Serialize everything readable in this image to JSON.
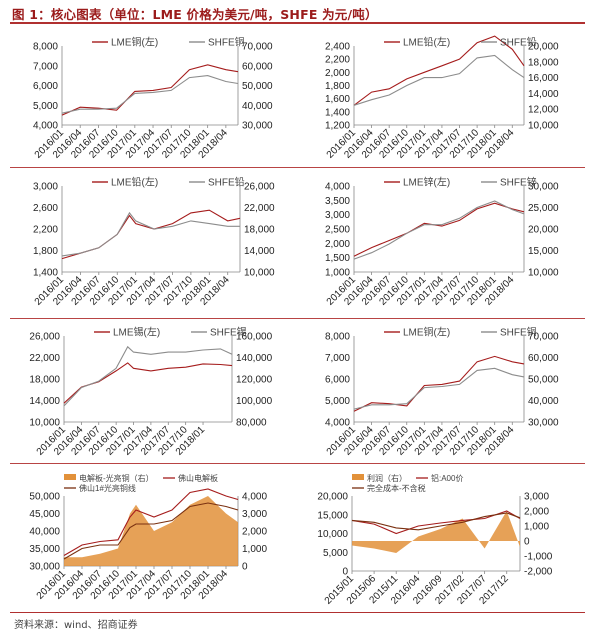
{
  "figure": {
    "title": "图 1：核心图表（单位：LME 价格为美元/吨，SHFE 为元/吨）",
    "source": "资料来源：wind、招商证券"
  },
  "colors": {
    "red": "#a51c1c",
    "gray": "#8c8c8c",
    "orange": "#e2913a",
    "brown": "#7a3010",
    "pink": "#e0a090"
  },
  "chart_data": [
    {
      "id": "copper1",
      "type": "line",
      "series": [
        {
          "name": "LME铜(左)",
          "axis": "left",
          "color": "red",
          "x": [
            "2016/01",
            "2016/04",
            "2016/07",
            "2016/10",
            "2017/01",
            "2017/04",
            "2017/07",
            "2017/10",
            "2018/01",
            "2018/04",
            "2018/06"
          ],
          "values": [
            4500,
            4900,
            4850,
            4750,
            5700,
            5750,
            5900,
            6800,
            7050,
            6800,
            6700
          ]
        },
        {
          "name": "SHFE铜",
          "axis": "right",
          "color": "gray",
          "x": [
            "2016/01",
            "2016/04",
            "2016/07",
            "2016/10",
            "2017/01",
            "2017/04",
            "2017/07",
            "2017/10",
            "2018/01",
            "2018/04",
            "2018/06"
          ],
          "values": [
            36000,
            38000,
            38000,
            38500,
            46000,
            46500,
            47500,
            54000,
            55000,
            52000,
            51000
          ]
        }
      ],
      "x_ticks": [
        "2016/01",
        "2016/04",
        "2016/07",
        "2016/10",
        "2017/01",
        "2017/04",
        "2017/07",
        "2017/10",
        "2018/01",
        "2018/04"
      ],
      "y_left": {
        "min": 4000,
        "max": 8000,
        "ticks": [
          "4,000",
          "5,000",
          "6,000",
          "7,000",
          "8,000"
        ]
      },
      "y_right": {
        "min": 30000,
        "max": 70000,
        "ticks": [
          "30,000",
          "40,000",
          "50,000",
          "60,000",
          "70,000"
        ]
      },
      "x_range": [
        "2016/01",
        "2018/06"
      ]
    },
    {
      "id": "lead1",
      "type": "line",
      "series": [
        {
          "name": "LME铅(左)",
          "axis": "left",
          "color": "red",
          "x": [
            "2016/01",
            "2016/04",
            "2016/07",
            "2016/10",
            "2017/01",
            "2017/04",
            "2017/07",
            "2017/10",
            "2018/01",
            "2018/04",
            "2018/06"
          ],
          "values": [
            1500,
            1700,
            1750,
            1900,
            2000,
            2100,
            2200,
            2450,
            2550,
            2350,
            2100
          ]
        },
        {
          "name": "SHFE铅",
          "axis": "right",
          "color": "gray",
          "x": [
            "2016/01",
            "2016/04",
            "2016/07",
            "2016/10",
            "2017/01",
            "2017/04",
            "2017/07",
            "2017/10",
            "2018/01",
            "2018/04",
            "2018/06"
          ],
          "values": [
            12500,
            13200,
            13800,
            15000,
            16000,
            16000,
            16500,
            18500,
            18800,
            17000,
            16000
          ]
        }
      ],
      "x_ticks": [
        "2016/01",
        "2016/04",
        "2016/07",
        "2016/10",
        "2017/01",
        "2017/04",
        "2017/07",
        "2017/10",
        "2018/01",
        "2018/04"
      ],
      "y_left": {
        "min": 1200,
        "max": 2400,
        "ticks": [
          "1,200",
          "1,400",
          "1,600",
          "1,800",
          "2,000",
          "2,200",
          "2,400"
        ]
      },
      "y_right": {
        "min": 10000,
        "max": 20000,
        "ticks": [
          "10,000",
          "12,000",
          "14,000",
          "16,000",
          "18,000",
          "20,000"
        ]
      },
      "x_range": [
        "2016/01",
        "2018/06"
      ]
    },
    {
      "id": "lead2",
      "type": "line",
      "series": [
        {
          "name": "LME铅(左)",
          "axis": "left",
          "color": "red",
          "x": [
            "2016/01",
            "2016/04",
            "2016/07",
            "2016/10",
            "2016/12",
            "2017/01",
            "2017/04",
            "2017/07",
            "2017/10",
            "2018/01",
            "2018/04",
            "2018/06"
          ],
          "values": [
            1650,
            1750,
            1850,
            2100,
            2450,
            2300,
            2200,
            2300,
            2500,
            2550,
            2350,
            2400
          ]
        },
        {
          "name": "SHFE铅",
          "axis": "right",
          "color": "gray",
          "x": [
            "2016/01",
            "2016/04",
            "2016/07",
            "2016/10",
            "2016/12",
            "2017/01",
            "2017/04",
            "2017/07",
            "2017/10",
            "2018/01",
            "2018/04",
            "2018/06"
          ],
          "values": [
            13000,
            13500,
            14500,
            17000,
            21000,
            19500,
            18000,
            18500,
            19500,
            19000,
            18500,
            18500
          ]
        }
      ],
      "x_ticks": [
        "2016/01",
        "2016/04",
        "2016/07",
        "2016/10",
        "2017/01",
        "2017/04",
        "2017/07",
        "2017/10",
        "2018/01",
        "2018/04"
      ],
      "y_left": {
        "min": 1400,
        "max": 3000,
        "ticks": [
          "1,400",
          "1,800",
          "2,200",
          "2,600",
          "3,000"
        ]
      },
      "y_right": {
        "min": 10000,
        "max": 26000,
        "ticks": [
          "10,000",
          "14,000",
          "18,000",
          "22,000",
          "26,000"
        ]
      },
      "x_range": [
        "2016/01",
        "2018/06"
      ]
    },
    {
      "id": "zinc",
      "type": "line",
      "series": [
        {
          "name": "LME锌(左)",
          "axis": "left",
          "color": "red",
          "x": [
            "2016/01",
            "2016/04",
            "2016/07",
            "2016/10",
            "2017/01",
            "2017/04",
            "2017/07",
            "2017/10",
            "2018/01",
            "2018/04",
            "2018/06"
          ],
          "values": [
            1550,
            1850,
            2100,
            2350,
            2700,
            2600,
            2800,
            3200,
            3400,
            3200,
            3100
          ]
        },
        {
          "name": "SHFE锌",
          "axis": "right",
          "color": "gray",
          "x": [
            "2016/01",
            "2016/04",
            "2016/07",
            "2016/10",
            "2017/01",
            "2017/04",
            "2017/07",
            "2017/10",
            "2018/01",
            "2018/04",
            "2018/06"
          ],
          "values": [
            13000,
            14500,
            16500,
            19000,
            21000,
            21000,
            22500,
            25000,
            26500,
            24500,
            23500
          ]
        }
      ],
      "x_ticks": [
        "2016/01",
        "2016/04",
        "2016/07",
        "2016/10",
        "2017/01",
        "2017/04",
        "2017/07",
        "2017/10",
        "2018/01",
        "2018/04"
      ],
      "y_left": {
        "min": 1000,
        "max": 4000,
        "ticks": [
          "1,000",
          "1,500",
          "2,000",
          "2,500",
          "3,000",
          "3,500",
          "4,000"
        ]
      },
      "y_right": {
        "min": 10000,
        "max": 30000,
        "ticks": [
          "10,000",
          "15,000",
          "20,000",
          "25,000",
          "30,000"
        ]
      },
      "x_range": [
        "2016/01",
        "2018/06"
      ]
    },
    {
      "id": "tin",
      "type": "line",
      "series": [
        {
          "name": "LME锡(左)",
          "axis": "left",
          "color": "red",
          "x": [
            "2016/01",
            "2016/04",
            "2016/07",
            "2016/10",
            "2016/12",
            "2017/01",
            "2017/04",
            "2017/07",
            "2017/10",
            "2018/01",
            "2018/04",
            "2018/06"
          ],
          "values": [
            13500,
            16500,
            17500,
            19500,
            21000,
            20000,
            19500,
            20000,
            20200,
            20800,
            20700,
            20500
          ]
        },
        {
          "name": "SHFE锡",
          "axis": "right",
          "color": "gray",
          "x": [
            "2016/01",
            "2016/04",
            "2016/07",
            "2016/10",
            "2016/12",
            "2017/01",
            "2017/04",
            "2017/07",
            "2017/10",
            "2018/01",
            "2018/04",
            "2018/06"
          ],
          "values": [
            95000,
            112000,
            118000,
            130000,
            150000,
            145000,
            143000,
            145000,
            145000,
            147000,
            148000,
            143000
          ]
        }
      ],
      "x_ticks": [
        "2016/01",
        "2016/04",
        "2016/07",
        "2016/10",
        "2017/01",
        "2017/04",
        "2017/07",
        "2017/10",
        "2018/01"
      ],
      "y_left": {
        "min": 10000,
        "max": 26000,
        "ticks": [
          "10,000",
          "14,000",
          "18,000",
          "22,000",
          "26,000"
        ]
      },
      "y_right": {
        "min": 80000,
        "max": 160000,
        "ticks": [
          "80,000",
          "100,000",
          "120,000",
          "140,000",
          "160,000"
        ]
      },
      "x_range": [
        "2016/01",
        "2018/06"
      ]
    },
    {
      "id": "copper2",
      "type": "line",
      "series": [
        {
          "name": "LME铜(左)",
          "axis": "left",
          "color": "red",
          "x": [
            "2016/01",
            "2016/04",
            "2016/07",
            "2016/10",
            "2017/01",
            "2017/04",
            "2017/07",
            "2017/10",
            "2018/01",
            "2018/04",
            "2018/06"
          ],
          "values": [
            4500,
            4900,
            4850,
            4750,
            5700,
            5750,
            5900,
            6800,
            7050,
            6800,
            6700
          ]
        },
        {
          "name": "SHFE铜",
          "axis": "right",
          "color": "gray",
          "x": [
            "2016/01",
            "2016/04",
            "2016/07",
            "2016/10",
            "2017/01",
            "2017/04",
            "2017/07",
            "2017/10",
            "2018/01",
            "2018/04",
            "2018/06"
          ],
          "values": [
            36000,
            38000,
            38000,
            38500,
            46000,
            46500,
            47500,
            54000,
            55000,
            52000,
            51000
          ]
        }
      ],
      "x_ticks": [
        "2016/01",
        "2016/04",
        "2016/07",
        "2016/10",
        "2017/01",
        "2017/04",
        "2017/07",
        "2017/10",
        "2018/01",
        "2018/04"
      ],
      "y_left": {
        "min": 4000,
        "max": 8000,
        "ticks": [
          "4,000",
          "5,000",
          "6,000",
          "7,000",
          "8,000"
        ]
      },
      "y_right": {
        "min": 30000,
        "max": 70000,
        "ticks": [
          "30,000",
          "40,000",
          "50,000",
          "60,000",
          "70,000"
        ]
      },
      "x_range": [
        "2016/01",
        "2018/06"
      ]
    },
    {
      "id": "copper-spread",
      "type": "line",
      "series": [
        {
          "name": "电解板-光亮铜（右）",
          "axis": "right",
          "color": "orange",
          "style": "area",
          "x": [
            "2016/01",
            "2016/04",
            "2016/07",
            "2016/10",
            "2016/12",
            "2017/01",
            "2017/04",
            "2017/07",
            "2017/10",
            "2018/01",
            "2018/04",
            "2018/06"
          ],
          "values": [
            500,
            500,
            700,
            1000,
            3000,
            3500,
            2000,
            2500,
            3500,
            4000,
            3000,
            2500
          ]
        },
        {
          "name": "佛山电解板",
          "axis": "left",
          "color": "red",
          "x": [
            "2016/01",
            "2016/04",
            "2016/07",
            "2016/10",
            "2016/12",
            "2017/01",
            "2017/04",
            "2017/07",
            "2017/10",
            "2018/01",
            "2018/04",
            "2018/06"
          ],
          "values": [
            33000,
            36000,
            37000,
            37500,
            44000,
            46000,
            44000,
            46000,
            51000,
            52000,
            50000,
            49000
          ]
        },
        {
          "name": "佛山1#光亮铜线",
          "axis": "left",
          "color": "brown",
          "x": [
            "2016/01",
            "2016/04",
            "2016/07",
            "2016/10",
            "2016/12",
            "2017/01",
            "2017/04",
            "2017/07",
            "2017/10",
            "2018/01",
            "2018/04",
            "2018/06"
          ],
          "values": [
            32000,
            35000,
            36000,
            36000,
            41000,
            42000,
            42000,
            43000,
            47000,
            48000,
            47000,
            46000
          ]
        }
      ],
      "x_ticks": [
        "2016/01",
        "2016/04",
        "2016/07",
        "2016/10",
        "2017/01",
        "2017/04",
        "2017/07",
        "2017/10",
        "2018/01",
        "2018/04"
      ],
      "y_left": {
        "min": 30000,
        "max": 50000,
        "ticks": [
          "30,000",
          "35,000",
          "40,000",
          "45,000",
          "50,000"
        ]
      },
      "y_right": {
        "min": 0,
        "max": 4000,
        "ticks": [
          "0",
          "1,000",
          "2,000",
          "3,000",
          "4,000"
        ]
      },
      "x_range": [
        "2016/01",
        "2018/06"
      ]
    },
    {
      "id": "aluminum-profit",
      "type": "line",
      "series": [
        {
          "name": "利润（右）",
          "axis": "right",
          "color": "orange",
          "style": "area",
          "x": [
            "2015/01",
            "2015/06",
            "2015/11",
            "2016/04",
            "2016/09",
            "2017/02",
            "2017/07",
            "2017/12",
            "2018/03"
          ],
          "values": [
            -300,
            -500,
            -800,
            300,
            800,
            1500,
            -500,
            2000,
            -400
          ]
        },
        {
          "name": "铝:A00价",
          "axis": "left",
          "color": "red",
          "x": [
            "2015/01",
            "2015/06",
            "2015/11",
            "2016/04",
            "2016/09",
            "2017/02",
            "2017/07",
            "2017/12",
            "2018/03"
          ],
          "values": [
            13500,
            12500,
            10000,
            12000,
            12800,
            13500,
            14000,
            16000,
            14000
          ]
        },
        {
          "name": "完全成本-不含税",
          "axis": "left",
          "color": "brown",
          "x": [
            "2015/01",
            "2015/06",
            "2015/11",
            "2016/04",
            "2016/09",
            "2017/02",
            "2017/07",
            "2017/12",
            "2018/03"
          ],
          "values": [
            13500,
            13000,
            11500,
            11000,
            12000,
            13000,
            14500,
            15500,
            14200
          ]
        }
      ],
      "x_ticks": [
        "2015/01",
        "2015/06",
        "2015/11",
        "2016/04",
        "2016/09",
        "2017/02",
        "2017/07",
        "2017/12"
      ],
      "y_left": {
        "min": 0,
        "max": 20000,
        "ticks": [
          "0",
          "5,000",
          "10,000",
          "15,000",
          "20,000"
        ]
      },
      "y_right": {
        "min": -2000,
        "max": 3000,
        "ticks": [
          "-2,000",
          "-1,000",
          "0",
          "1,000",
          "2,000",
          "3,000"
        ]
      },
      "x_range": [
        "2015/01",
        "2018/03"
      ]
    }
  ]
}
